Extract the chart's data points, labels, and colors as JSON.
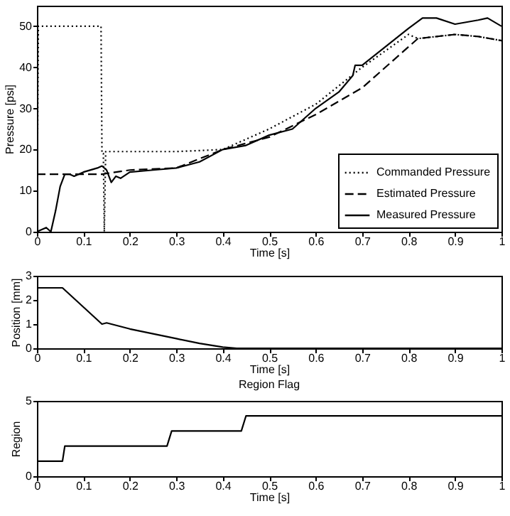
{
  "chart_data": [
    {
      "type": "line",
      "xlabel": "Time [s]",
      "ylabel": "Pressure [psi]",
      "xlim": [
        0,
        1
      ],
      "ylim": [
        0,
        55
      ],
      "xticks": [
        0,
        0.1,
        0.2,
        0.3,
        0.4,
        0.5,
        0.6,
        0.7,
        0.8,
        0.9,
        1
      ],
      "yticks": [
        0,
        10,
        20,
        30,
        40,
        50
      ],
      "grid": false,
      "legend": "bottom right",
      "series": [
        {
          "name": "Commanded Pressure",
          "color": "#000000",
          "line_style": "dotted",
          "x": [
            0,
            0.003,
            0.138,
            0.14,
            0.143,
            0.145,
            0.148,
            0.2,
            0.3,
            0.4,
            0.5,
            0.6,
            0.7,
            0.8,
            0.82,
            0.9,
            0.95,
            1
          ],
          "values": [
            0,
            50,
            50,
            19,
            19,
            0,
            19.5,
            19.5,
            19.5,
            20,
            25,
            31,
            40,
            48,
            47,
            48,
            47.5,
            46.5
          ]
        },
        {
          "name": "Estimated Pressure",
          "color": "#000000",
          "line_style": "dashed",
          "x": [
            0,
            0.14,
            0.2,
            0.3,
            0.4,
            0.5,
            0.6,
            0.7,
            0.78,
            0.82,
            0.9,
            0.95,
            1
          ],
          "values": [
            14,
            14,
            15,
            15.5,
            20,
            23,
            28.5,
            35,
            43,
            47,
            48,
            47.5,
            46.5
          ]
        },
        {
          "name": "Measured Pressure",
          "color": "#000000",
          "line_style": "solid",
          "x": [
            0,
            0.02,
            0.03,
            0.04,
            0.05,
            0.06,
            0.07,
            0.08,
            0.1,
            0.13,
            0.14,
            0.15,
            0.16,
            0.17,
            0.18,
            0.2,
            0.25,
            0.3,
            0.35,
            0.4,
            0.45,
            0.5,
            0.55,
            0.6,
            0.65,
            0.68,
            0.685,
            0.7,
            0.75,
            0.8,
            0.83,
            0.86,
            0.9,
            0.95,
            0.97,
            1
          ],
          "values": [
            0,
            1,
            0,
            5,
            11,
            14,
            14,
            13.5,
            14.5,
            15.5,
            16,
            15,
            12,
            13.5,
            13,
            14.5,
            15,
            15.5,
            17,
            20,
            21,
            23.5,
            25,
            30,
            34,
            38,
            40.5,
            40.5,
            45,
            49.5,
            52,
            52,
            50.5,
            51.5,
            52,
            50
          ]
        }
      ]
    },
    {
      "type": "line",
      "xlabel": "Time [s]",
      "ylabel": "Position [mm]",
      "xlim": [
        0,
        1
      ],
      "ylim": [
        0,
        3
      ],
      "xticks": [
        0,
        0.1,
        0.2,
        0.3,
        0.4,
        0.5,
        0.6,
        0.7,
        0.8,
        0.9,
        1
      ],
      "yticks": [
        0,
        1,
        2,
        3
      ],
      "grid": false,
      "line_style": "solid",
      "series": [
        {
          "color": "#000000",
          "x": [
            0,
            0.055,
            0.14,
            0.15,
            0.2,
            0.3,
            0.35,
            0.4,
            0.43,
            1
          ],
          "values": [
            2.5,
            2.5,
            1,
            1.05,
            0.8,
            0.4,
            0.2,
            0.05,
            0,
            0
          ]
        }
      ]
    },
    {
      "type": "line",
      "title": "Region Flag",
      "xlabel": "Time [s]",
      "ylabel": "Region",
      "xlim": [
        0,
        1
      ],
      "ylim": [
        0,
        5
      ],
      "xticks": [
        0,
        0.1,
        0.2,
        0.3,
        0.4,
        0.5,
        0.6,
        0.7,
        0.8,
        0.9,
        1
      ],
      "yticks": [
        0,
        5
      ],
      "grid": false,
      "line_style": "solid",
      "series": [
        {
          "color": "#000000",
          "x": [
            0,
            0.055,
            0.06,
            0.28,
            0.29,
            0.44,
            0.45,
            1
          ],
          "values": [
            1,
            1,
            2,
            2,
            3,
            3,
            4,
            4
          ]
        }
      ]
    }
  ]
}
